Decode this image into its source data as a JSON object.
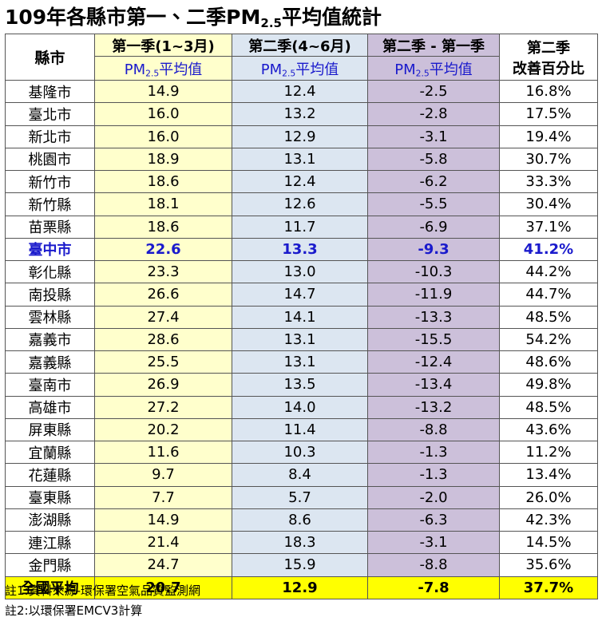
{
  "title": {
    "parts": [
      "109年各縣市第一、二季PM",
      "2.5",
      "平均值統計"
    ]
  },
  "table": {
    "header": {
      "county": "縣市",
      "columns": [
        {
          "top": "第一季(1~3月)",
          "bottom": [
            "PM",
            "2.5",
            "平均值"
          ]
        },
        {
          "top": "第二季(4~6月)",
          "bottom": [
            "PM",
            "2.5",
            "平均值"
          ]
        },
        {
          "top": "第二季 - 第一季",
          "bottom": [
            "PM",
            "2.5",
            "平均值"
          ]
        },
        {
          "top": "第二季",
          "bottom": [
            "改善百分比"
          ]
        }
      ]
    },
    "rows": [
      [
        "基隆市",
        "14.9",
        "12.4",
        "-2.5",
        "16.8%"
      ],
      [
        "臺北市",
        "16.0",
        "13.2",
        "-2.8",
        "17.5%"
      ],
      [
        "新北市",
        "16.0",
        "12.9",
        "-3.1",
        "19.4%"
      ],
      [
        "桃園市",
        "18.9",
        "13.1",
        "-5.8",
        "30.7%"
      ],
      [
        "新竹市",
        "18.6",
        "12.4",
        "-6.2",
        "33.3%"
      ],
      [
        "新竹縣",
        "18.1",
        "12.6",
        "-5.5",
        "30.4%"
      ],
      [
        "苗栗縣",
        "18.6",
        "11.7",
        "-6.9",
        "37.1%"
      ],
      [
        "臺中市",
        "22.6",
        "13.3",
        "-9.3",
        "41.2%"
      ],
      [
        "彰化縣",
        "23.3",
        "13.0",
        "-10.3",
        "44.2%"
      ],
      [
        "南投縣",
        "26.6",
        "14.7",
        "-11.9",
        "44.7%"
      ],
      [
        "雲林縣",
        "27.4",
        "14.1",
        "-13.3",
        "48.5%"
      ],
      [
        "嘉義市",
        "28.6",
        "13.1",
        "-15.5",
        "54.2%"
      ],
      [
        "嘉義縣",
        "25.5",
        "13.1",
        "-12.4",
        "48.6%"
      ],
      [
        "臺南市",
        "26.9",
        "13.5",
        "-13.4",
        "49.8%"
      ],
      [
        "高雄市",
        "27.2",
        "14.0",
        "-13.2",
        "48.5%"
      ],
      [
        "屏東縣",
        "20.2",
        "11.4",
        "-8.8",
        "43.6%"
      ],
      [
        "宜蘭縣",
        "11.6",
        "10.3",
        "-1.3",
        "11.2%"
      ],
      [
        "花蓮縣",
        "9.7",
        "8.4",
        "-1.3",
        "13.4%"
      ],
      [
        "臺東縣",
        "7.7",
        "5.7",
        "-2.0",
        "26.0%"
      ],
      [
        "澎湖縣",
        "14.9",
        "8.6",
        "-6.3",
        "42.3%"
      ],
      [
        "連江縣",
        "21.4",
        "18.3",
        "-3.1",
        "14.5%"
      ],
      [
        "金門縣",
        "24.7",
        "15.9",
        "-8.8",
        "35.6%"
      ]
    ],
    "highlight_row": 7,
    "total": [
      "全國平均",
      "20.7",
      "12.9",
      "-7.8",
      "37.7%"
    ]
  },
  "notes": [
    "註1:資料來源-環保署空氣品質監測網",
    "註2:以環保署EMCV3計算"
  ]
}
